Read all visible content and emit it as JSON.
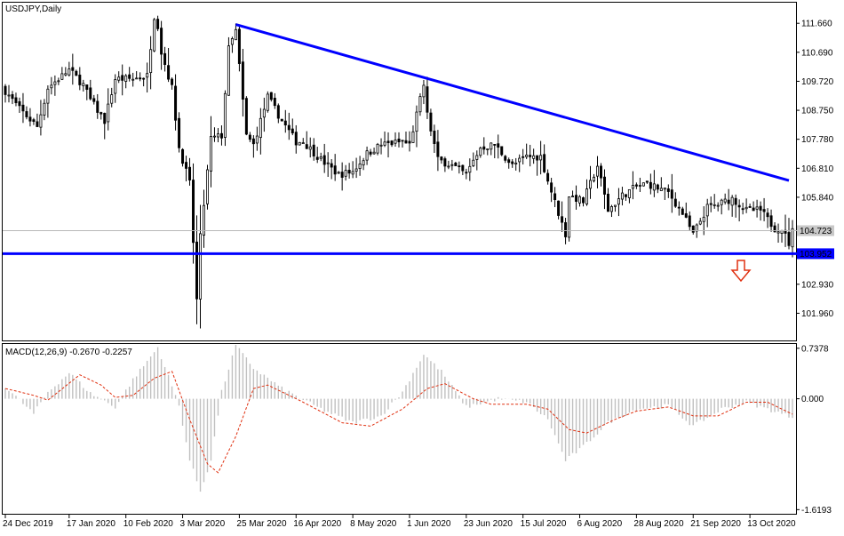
{
  "chart_data": [
    {
      "type": "candlestick",
      "title": "USDJPY,Daily",
      "y_ticks": [
        111.66,
        110.69,
        109.72,
        108.75,
        107.78,
        106.81,
        105.84,
        102.93,
        101.96
      ],
      "ylim": [
        101.05,
        112.35
      ],
      "x_tick_labels": [
        "24 Dec 2019",
        "17 Jan 2020",
        "10 Feb 2020",
        "3 Mar 2020",
        "25 Mar 2020",
        "16 Apr 2020",
        "8 May 2020",
        "1 Jun 2020",
        "23 Jun 2020",
        "15 Jul 2020",
        "6 Aug 2020",
        "28 Aug 2020",
        "21 Sep 2020",
        "13 Oct 2020"
      ],
      "current_price": {
        "value": 104.723,
        "label": "104.723"
      },
      "support_line": {
        "value": 103.952,
        "label": "103.952",
        "color": "#0000ff"
      },
      "trendline": {
        "from": {
          "date": "2020-03-24",
          "value": 111.62
        },
        "to": {
          "date": "2020-10-28",
          "value": 106.4
        },
        "color": "#0000ff"
      },
      "annotation": {
        "type": "arrow-down",
        "color": "#e03010"
      },
      "date_range": [
        "2019-12-24",
        "2020-10-29"
      ],
      "anchors": [
        [
          "2019-12-24",
          109.4
        ],
        [
          "2019-12-30",
          108.8
        ],
        [
          "2020-01-06",
          108.2
        ],
        [
          "2020-01-09",
          109.5
        ],
        [
          "2020-01-17",
          110.1
        ],
        [
          "2020-01-23",
          109.6
        ],
        [
          "2020-01-27",
          109.1
        ],
        [
          "2020-01-31",
          108.4
        ],
        [
          "2020-02-05",
          109.8
        ],
        [
          "2020-02-12",
          109.8
        ],
        [
          "2020-02-18",
          109.9
        ],
        [
          "2020-02-20",
          111.9
        ],
        [
          "2020-02-21",
          111.6
        ],
        [
          "2020-02-24",
          110.7
        ],
        [
          "2020-02-27",
          109.5
        ],
        [
          "2020-03-02",
          107.5
        ],
        [
          "2020-03-05",
          106.3
        ],
        [
          "2020-03-09",
          102.4
        ],
        [
          "2020-03-10",
          104.5
        ],
        [
          "2020-03-13",
          107.8
        ],
        [
          "2020-03-18",
          107.9
        ],
        [
          "2020-03-20",
          110.8
        ],
        [
          "2020-03-24",
          111.4
        ],
        [
          "2020-03-27",
          107.9
        ],
        [
          "2020-03-31",
          107.6
        ],
        [
          "2020-04-06",
          109.2
        ],
        [
          "2020-04-10",
          108.4
        ],
        [
          "2020-04-16",
          107.7
        ],
        [
          "2020-04-20",
          107.7
        ],
        [
          "2020-04-27",
          107.1
        ],
        [
          "2020-05-04",
          106.6
        ],
        [
          "2020-05-08",
          106.7
        ],
        [
          "2020-05-14",
          107.3
        ],
        [
          "2020-05-20",
          107.6
        ],
        [
          "2020-05-28",
          107.7
        ],
        [
          "2020-06-01",
          107.6
        ],
        [
          "2020-06-04",
          109.1
        ],
        [
          "2020-06-05",
          109.6
        ],
        [
          "2020-06-08",
          108.6
        ],
        [
          "2020-06-11",
          107.1
        ],
        [
          "2020-06-17",
          106.9
        ],
        [
          "2020-06-23",
          106.6
        ],
        [
          "2020-06-29",
          107.5
        ],
        [
          "2020-07-03",
          107.6
        ],
        [
          "2020-07-10",
          106.9
        ],
        [
          "2020-07-16",
          107.2
        ],
        [
          "2020-07-22",
          107.2
        ],
        [
          "2020-07-24",
          106.4
        ],
        [
          "2020-07-31",
          104.6
        ],
        [
          "2020-08-03",
          105.9
        ],
        [
          "2020-08-07",
          105.7
        ],
        [
          "2020-08-13",
          106.9
        ],
        [
          "2020-08-18",
          105.4
        ],
        [
          "2020-08-24",
          105.9
        ],
        [
          "2020-08-28",
          106.2
        ],
        [
          "2020-09-02",
          106.3
        ],
        [
          "2020-09-10",
          106.0
        ],
        [
          "2020-09-16",
          105.3
        ],
        [
          "2020-09-21",
          104.6
        ],
        [
          "2020-09-25",
          105.5
        ],
        [
          "2020-09-30",
          105.6
        ],
        [
          "2020-10-06",
          105.8
        ],
        [
          "2020-10-12",
          105.4
        ],
        [
          "2020-10-16",
          105.4
        ],
        [
          "2020-10-22",
          104.8
        ],
        [
          "2020-10-26",
          104.8
        ],
        [
          "2020-10-28",
          104.3
        ],
        [
          "2020-10-29",
          104.7
        ]
      ]
    },
    {
      "type": "macd",
      "title": "MACD(12,26,9) -0.2670 -0.2257",
      "y_ticks": [
        0.7378,
        0.0,
        -1.6193
      ],
      "y_tick_labels": [
        "0.7378",
        "0.000",
        "-1.6193"
      ],
      "ylim": [
        -1.68,
        0.8
      ],
      "histogram_color": "#c0c0c0",
      "signal_color": "#e03010",
      "histogram_anchors": [
        [
          "2019-12-24",
          0.18
        ],
        [
          "2020-01-03",
          -0.22
        ],
        [
          "2020-01-09",
          0.1
        ],
        [
          "2020-01-17",
          0.38
        ],
        [
          "2020-01-27",
          0.08
        ],
        [
          "2020-02-05",
          -0.12
        ],
        [
          "2020-02-12",
          0.28
        ],
        [
          "2020-02-21",
          0.75
        ],
        [
          "2020-03-02",
          -0.1
        ],
        [
          "2020-03-05",
          -0.9
        ],
        [
          "2020-03-10",
          -1.35
        ],
        [
          "2020-03-13",
          -0.9
        ],
        [
          "2020-03-18",
          0.1
        ],
        [
          "2020-03-24",
          0.78
        ],
        [
          "2020-03-31",
          0.45
        ],
        [
          "2020-04-10",
          0.15
        ],
        [
          "2020-04-27",
          -0.15
        ],
        [
          "2020-05-08",
          -0.35
        ],
        [
          "2020-05-20",
          -0.25
        ],
        [
          "2020-05-28",
          0.1
        ],
        [
          "2020-06-05",
          0.65
        ],
        [
          "2020-06-12",
          0.4
        ],
        [
          "2020-06-23",
          -0.12
        ],
        [
          "2020-07-06",
          0.0
        ],
        [
          "2020-07-16",
          -0.05
        ],
        [
          "2020-07-24",
          -0.3
        ],
        [
          "2020-07-31",
          -0.9
        ],
        [
          "2020-08-07",
          -0.7
        ],
        [
          "2020-08-18",
          -0.35
        ],
        [
          "2020-08-28",
          -0.15
        ],
        [
          "2020-09-10",
          -0.1
        ],
        [
          "2020-09-21",
          -0.4
        ],
        [
          "2020-10-01",
          -0.15
        ],
        [
          "2020-10-12",
          -0.05
        ],
        [
          "2020-10-29",
          -0.27
        ]
      ],
      "signal_anchors": [
        [
          "2019-12-24",
          0.15
        ],
        [
          "2020-01-03",
          0.05
        ],
        [
          "2020-01-09",
          -0.02
        ],
        [
          "2020-01-22",
          0.35
        ],
        [
          "2020-01-30",
          0.2
        ],
        [
          "2020-02-05",
          0.02
        ],
        [
          "2020-02-12",
          0.05
        ],
        [
          "2020-02-20",
          0.3
        ],
        [
          "2020-02-27",
          0.4
        ],
        [
          "2020-03-05",
          -0.3
        ],
        [
          "2020-03-12",
          -0.95
        ],
        [
          "2020-03-17",
          -1.08
        ],
        [
          "2020-03-24",
          -0.55
        ],
        [
          "2020-03-31",
          0.15
        ],
        [
          "2020-04-06",
          0.2
        ],
        [
          "2020-04-20",
          -0.05
        ],
        [
          "2020-05-05",
          -0.35
        ],
        [
          "2020-05-15",
          -0.4
        ],
        [
          "2020-05-28",
          -0.15
        ],
        [
          "2020-06-08",
          0.15
        ],
        [
          "2020-06-15",
          0.22
        ],
        [
          "2020-06-25",
          0.0
        ],
        [
          "2020-07-02",
          -0.08
        ],
        [
          "2020-07-16",
          -0.08
        ],
        [
          "2020-07-24",
          -0.15
        ],
        [
          "2020-08-03",
          -0.45
        ],
        [
          "2020-08-10",
          -0.5
        ],
        [
          "2020-08-20",
          -0.3
        ],
        [
          "2020-08-28",
          -0.18
        ],
        [
          "2020-09-10",
          -0.12
        ],
        [
          "2020-09-21",
          -0.25
        ],
        [
          "2020-09-30",
          -0.25
        ],
        [
          "2020-10-12",
          -0.05
        ],
        [
          "2020-10-20",
          -0.05
        ],
        [
          "2020-10-29",
          -0.2257
        ]
      ]
    }
  ]
}
